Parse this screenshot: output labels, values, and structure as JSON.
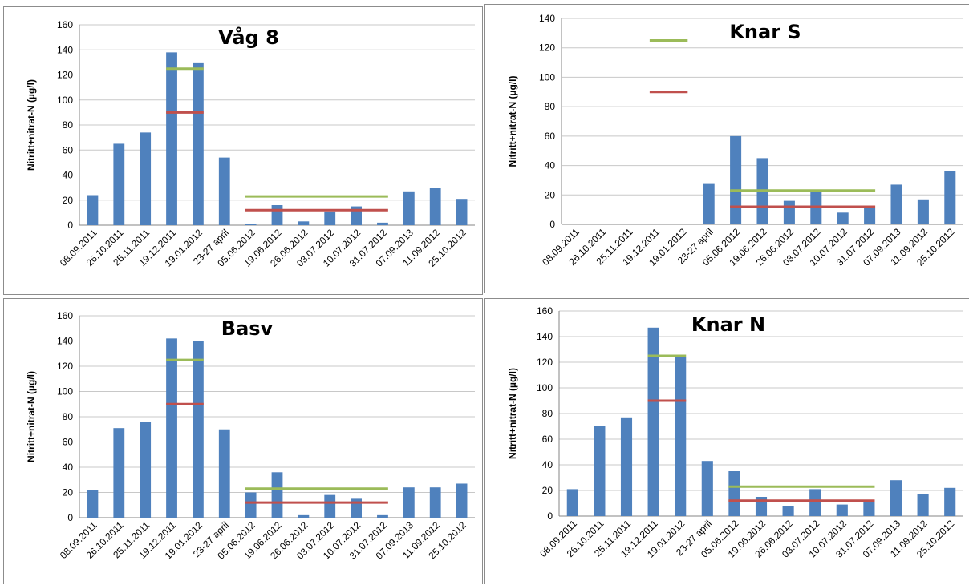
{
  "categories": [
    "08.09.2011",
    "26.10.2011",
    "25.11.2011",
    "19.12.2011",
    "19.01.2012",
    "23-27 april",
    "05.06.2012",
    "19.06.2012",
    "26.06.2012",
    "03.07.2012",
    "10.07.2012",
    "31.07.2012",
    "07.09.2013",
    "11.09.2012",
    "25.10.2012"
  ],
  "colors": {
    "bar": "#4f81bd",
    "green_line": "#9bbb59",
    "red_line": "#c0504d",
    "grid": "#c8c8c8"
  },
  "chart_data": [
    {
      "type": "bar",
      "title": "Våg 8",
      "ylabel": "Nitritt+nitrat-N  (µg/l)",
      "ylim": [
        0,
        160
      ],
      "yticks": [
        0,
        20,
        40,
        60,
        80,
        100,
        120,
        140,
        160
      ],
      "categories": [
        "08.09.2011",
        "26.10.2011",
        "25.11.2011",
        "19.12.2011",
        "19.01.2012",
        "23-27 april",
        "05.06.2012",
        "19.06.2012",
        "26.06.2012",
        "03.07.2012",
        "10.07.2012",
        "31.07.2012",
        "07.09.2013",
        "11.09.2012",
        "25.10.2012"
      ],
      "values": [
        24,
        65,
        74,
        138,
        130,
        54,
        1,
        16,
        3,
        11,
        15,
        2,
        27,
        30,
        21
      ],
      "reference_lines": [
        {
          "color": "green",
          "y": 125,
          "from_index": 3,
          "to_index": 4
        },
        {
          "color": "red",
          "y": 90,
          "from_index": 3,
          "to_index": 4
        },
        {
          "color": "green",
          "y": 23,
          "from_index": 6,
          "to_index": 11
        },
        {
          "color": "red",
          "y": 12,
          "from_index": 6,
          "to_index": 11
        }
      ],
      "grid": true
    },
    {
      "type": "bar",
      "title": "Knar S",
      "ylabel": "Nitritt+nitrat-N  (µg/l)",
      "ylim": [
        0,
        140
      ],
      "yticks": [
        0,
        20,
        40,
        60,
        80,
        100,
        120,
        140
      ],
      "categories": [
        "08.09.2011",
        "26.10.2011",
        "25.11.2011",
        "19.12.2011",
        "19.01.2012",
        "23-27 april",
        "05.06.2012",
        "19.06.2012",
        "26.06.2012",
        "03.07.2012",
        "10.07.2012",
        "31.07.2012",
        "07.09.2013",
        "11.09.2012",
        "25.10.2012"
      ],
      "values": [
        0,
        0,
        0,
        0,
        0,
        28,
        60,
        45,
        16,
        23,
        8,
        11,
        27,
        17,
        36
      ],
      "reference_lines": [
        {
          "color": "green",
          "y": 125,
          "from_index": 3,
          "to_index": 4
        },
        {
          "color": "red",
          "y": 90,
          "from_index": 3,
          "to_index": 4
        },
        {
          "color": "green",
          "y": 23,
          "from_index": 6,
          "to_index": 11
        },
        {
          "color": "red",
          "y": 12,
          "from_index": 6,
          "to_index": 11
        }
      ],
      "grid": true
    },
    {
      "type": "bar",
      "title": "Basv",
      "ylabel": "Nitritt+nitrat-N  (µg/l)",
      "ylim": [
        0,
        160
      ],
      "yticks": [
        0,
        20,
        40,
        60,
        80,
        100,
        120,
        140,
        160
      ],
      "categories": [
        "08.09.2011",
        "26.10.2011",
        "25.11.2011",
        "19.12.2011",
        "19.01.2012",
        "23-27 april",
        "05.06.2012",
        "19.06.2012",
        "26.06.2012",
        "03.07.2012",
        "10.07.2012",
        "31.07.2012",
        "07.09.2013",
        "11.09.2012",
        "25.10.2012"
      ],
      "values": [
        22,
        71,
        76,
        142,
        140,
        70,
        20,
        36,
        2,
        18,
        15,
        2,
        24,
        24,
        27
      ],
      "reference_lines": [
        {
          "color": "green",
          "y": 125,
          "from_index": 3,
          "to_index": 4
        },
        {
          "color": "red",
          "y": 90,
          "from_index": 3,
          "to_index": 4
        },
        {
          "color": "green",
          "y": 23,
          "from_index": 6,
          "to_index": 11
        },
        {
          "color": "red",
          "y": 12,
          "from_index": 6,
          "to_index": 11
        }
      ],
      "grid": true
    },
    {
      "type": "bar",
      "title": "Knar N",
      "ylabel": "Nitritt+nitrat-N  (µg/l)",
      "ylim": [
        0,
        160
      ],
      "yticks": [
        0,
        20,
        40,
        60,
        80,
        100,
        120,
        140,
        160
      ],
      "categories": [
        "08.09.2011",
        "26.10.2011",
        "25.11.2011",
        "19.12.2011",
        "19.01.2012",
        "23-27 april",
        "05.06.2012",
        "19.06.2012",
        "26.06.2012",
        "03.07.2012",
        "10.07.2012",
        "31.07.2012",
        "07.09.2013",
        "11.09.2012",
        "25.10.2012"
      ],
      "values": [
        21,
        70,
        77,
        147,
        124,
        43,
        35,
        15,
        8,
        21,
        9,
        11,
        28,
        17,
        22
      ],
      "reference_lines": [
        {
          "color": "green",
          "y": 125,
          "from_index": 3,
          "to_index": 4
        },
        {
          "color": "red",
          "y": 90,
          "from_index": 3,
          "to_index": 4
        },
        {
          "color": "green",
          "y": 23,
          "from_index": 6,
          "to_index": 11
        },
        {
          "color": "red",
          "y": 12,
          "from_index": 6,
          "to_index": 11
        }
      ],
      "grid": true
    }
  ]
}
